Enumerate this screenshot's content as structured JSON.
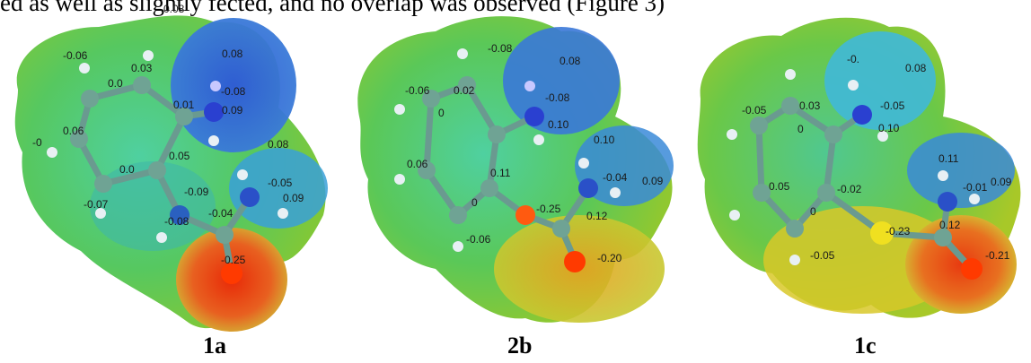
{
  "caption": {
    "text_fragment": "fected, and no overlap was observed (Figure 3)",
    "text_prefix": "ed as well as slightly"
  },
  "panels": [
    {
      "label": "1a",
      "charges": [
        "-0.08",
        "0.08",
        "-0.06",
        "0.03",
        "0.0",
        "-0.08",
        "0.01",
        "0.09",
        "0.06",
        "-0",
        "0.08",
        "0.05",
        "0.0",
        "-0.05",
        "-0.09",
        "0.09",
        "-0.07",
        "-0.04",
        "-0.08",
        "-0.25"
      ]
    },
    {
      "label": "2b",
      "charges": [
        "-0.08",
        "0.08",
        "-0.06",
        "0.02",
        "-0.08",
        "0",
        "0.10",
        "0.10",
        "0.06",
        "0.11",
        "-0.04",
        "0.09",
        "-0.25",
        "0.12",
        "0",
        "-0.06",
        "-0.20"
      ]
    },
    {
      "label": "1c",
      "charges": [
        "-0.",
        "0.08",
        "-0.05",
        "0.03",
        "-0.05",
        "0",
        "0.10",
        "0.11",
        "-0.01",
        "0.09",
        "0.05",
        "-0.02",
        "0",
        "-0.23",
        "0.12",
        "-0.05",
        "-0.21"
      ]
    }
  ],
  "colors": {
    "positive": "#2a6bd6",
    "neutral": "#4fc06a",
    "negative": "#e03a10",
    "sulfur": "#f0e020",
    "oxygen": "#ff3a00",
    "nitrogen": "#2a40d0",
    "carbon": "#5a8a7a",
    "hydrogen": "#e8f0f4"
  }
}
